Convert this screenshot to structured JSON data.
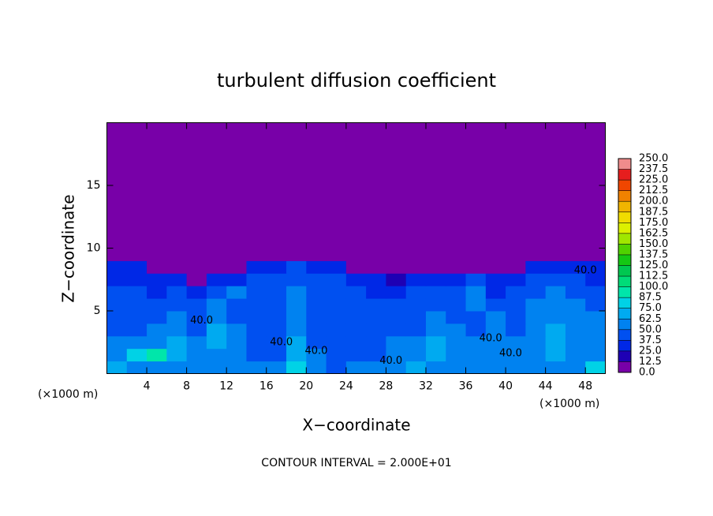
{
  "chart_data": {
    "type": "contour",
    "title": "turbulent diffusion coefficient",
    "x_label": "X−coordinate",
    "y_label": "Z−coordinate",
    "x_unit": "(×1000 m)",
    "y_unit": "(×1000 m)",
    "footnote": "CONTOUR INTERVAL = 2.000E+01",
    "xlim": [
      0,
      50
    ],
    "ylim": [
      0,
      20
    ],
    "xticks": [
      4,
      8,
      12,
      16,
      20,
      24,
      28,
      32,
      36,
      40,
      44,
      48
    ],
    "yticks": [
      5,
      10,
      15
    ],
    "xbins": [
      0,
      2,
      4,
      6,
      8,
      10,
      12,
      14,
      16,
      18,
      20,
      22,
      24,
      26,
      28,
      30,
      32,
      34,
      36,
      38,
      40,
      42,
      44,
      46,
      48,
      50
    ],
    "ybins": [
      0,
      1,
      2,
      3,
      4,
      5,
      6,
      7,
      8,
      9,
      20
    ],
    "z": [
      [
        70,
        55,
        55,
        50,
        60,
        55,
        60,
        55,
        50,
        75,
        50,
        45,
        50,
        50,
        55,
        70,
        55,
        50,
        50,
        50,
        55,
        55,
        55,
        55,
        80
      ],
      [
        60,
        75,
        90,
        65,
        60,
        60,
        50,
        45,
        45,
        70,
        50,
        45,
        40,
        45,
        55,
        60,
        65,
        55,
        50,
        60,
        55,
        60,
        65,
        60,
        60
      ],
      [
        50,
        55,
        60,
        70,
        50,
        65,
        55,
        45,
        40,
        65,
        45,
        40,
        40,
        40,
        50,
        50,
        70,
        60,
        50,
        55,
        50,
        60,
        65,
        60,
        55
      ],
      [
        40,
        45,
        50,
        55,
        45,
        70,
        50,
        40,
        40,
        60,
        40,
        40,
        40,
        40,
        45,
        40,
        60,
        55,
        45,
        55,
        45,
        55,
        65,
        55,
        50
      ],
      [
        45,
        40,
        45,
        50,
        40,
        60,
        45,
        40,
        40,
        60,
        40,
        40,
        40,
        40,
        40,
        45,
        55,
        45,
        45,
        50,
        40,
        50,
        60,
        55,
        50
      ],
      [
        40,
        45,
        40,
        45,
        40,
        55,
        45,
        40,
        40,
        55,
        40,
        40,
        40,
        40,
        40,
        40,
        45,
        40,
        50,
        40,
        45,
        55,
        60,
        50,
        45
      ],
      [
        40,
        40,
        35,
        40,
        30,
        45,
        50,
        40,
        40,
        50,
        40,
        40,
        40,
        35,
        35,
        40,
        40,
        40,
        55,
        35,
        40,
        45,
        50,
        45,
        40
      ],
      [
        35,
        35,
        30,
        25,
        10,
        25,
        35,
        40,
        40,
        45,
        40,
        40,
        35,
        25,
        20,
        30,
        30,
        35,
        40,
        30,
        35,
        40,
        40,
        40,
        35
      ],
      [
        25,
        25,
        0,
        0,
        0,
        0,
        0,
        30,
        35,
        40,
        35,
        30,
        0,
        0,
        0,
        0,
        0,
        0,
        0,
        0,
        0,
        25,
        30,
        30,
        25
      ],
      [
        0,
        0,
        0,
        0,
        0,
        0,
        0,
        0,
        0,
        0,
        0,
        0,
        0,
        0,
        0,
        0,
        0,
        0,
        0,
        0,
        0,
        0,
        0,
        0,
        0
      ]
    ],
    "contour_label": {
      "value": 40,
      "label": "40.0"
    },
    "colorbar_ticks": [
      {
        "value": 0,
        "label": "0.0"
      },
      {
        "value": 12.5,
        "label": "12.5"
      },
      {
        "value": 25,
        "label": "25.0"
      },
      {
        "value": 37.5,
        "label": "37.5"
      },
      {
        "value": 50,
        "label": "50.0"
      },
      {
        "value": 62.5,
        "label": "62.5"
      },
      {
        "value": 75,
        "label": "75.0"
      },
      {
        "value": 87.5,
        "label": "87.5"
      },
      {
        "value": 100,
        "label": "100.0"
      },
      {
        "value": 112.5,
        "label": "112.5"
      },
      {
        "value": 125,
        "label": "125.0"
      },
      {
        "value": 137.5,
        "label": "137.5"
      },
      {
        "value": 150,
        "label": "150.0"
      },
      {
        "value": 162.5,
        "label": "162.5"
      },
      {
        "value": 175,
        "label": "175.0"
      },
      {
        "value": 187.5,
        "label": "187.5"
      },
      {
        "value": 200,
        "label": "200.0"
      },
      {
        "value": 212.5,
        "label": "212.5"
      },
      {
        "value": 225,
        "label": "225.0"
      },
      {
        "value": 237.5,
        "label": "237.5"
      },
      {
        "value": 250,
        "label": "250.0"
      }
    ],
    "colors": [
      "#7800a8",
      "#1e00b4",
      "#0028e6",
      "#0050f0",
      "#0082f0",
      "#00aaf0",
      "#00d2e6",
      "#00e6aa",
      "#00dc78",
      "#00c850",
      "#14c814",
      "#50d200",
      "#a0e600",
      "#dcf000",
      "#f0dc00",
      "#f0b400",
      "#f08200",
      "#f04600",
      "#e61e1e",
      "#f08c8c"
    ]
  }
}
